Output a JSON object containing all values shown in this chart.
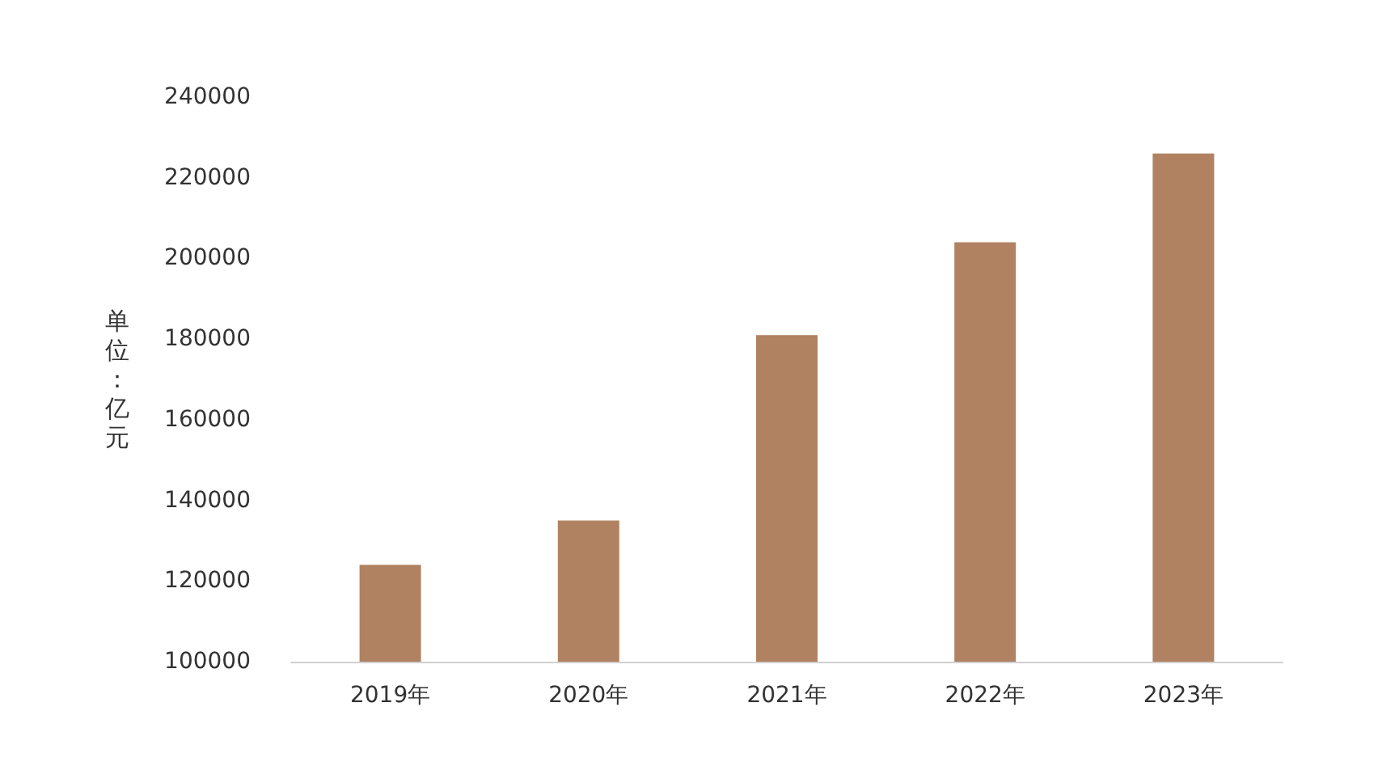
{
  "chart_data": {
    "type": "bar",
    "ylabel": "单位：亿元",
    "categories": [
      "2019年",
      "2020年",
      "2021年",
      "2022年",
      "2023年"
    ],
    "values": [
      124000,
      135000,
      181000,
      204000,
      226000
    ],
    "color": "#b08262",
    "ylim": [
      100000,
      240000
    ],
    "yticks": [
      100000,
      120000,
      140000,
      160000,
      180000,
      200000,
      220000,
      240000
    ],
    "grid": false
  }
}
